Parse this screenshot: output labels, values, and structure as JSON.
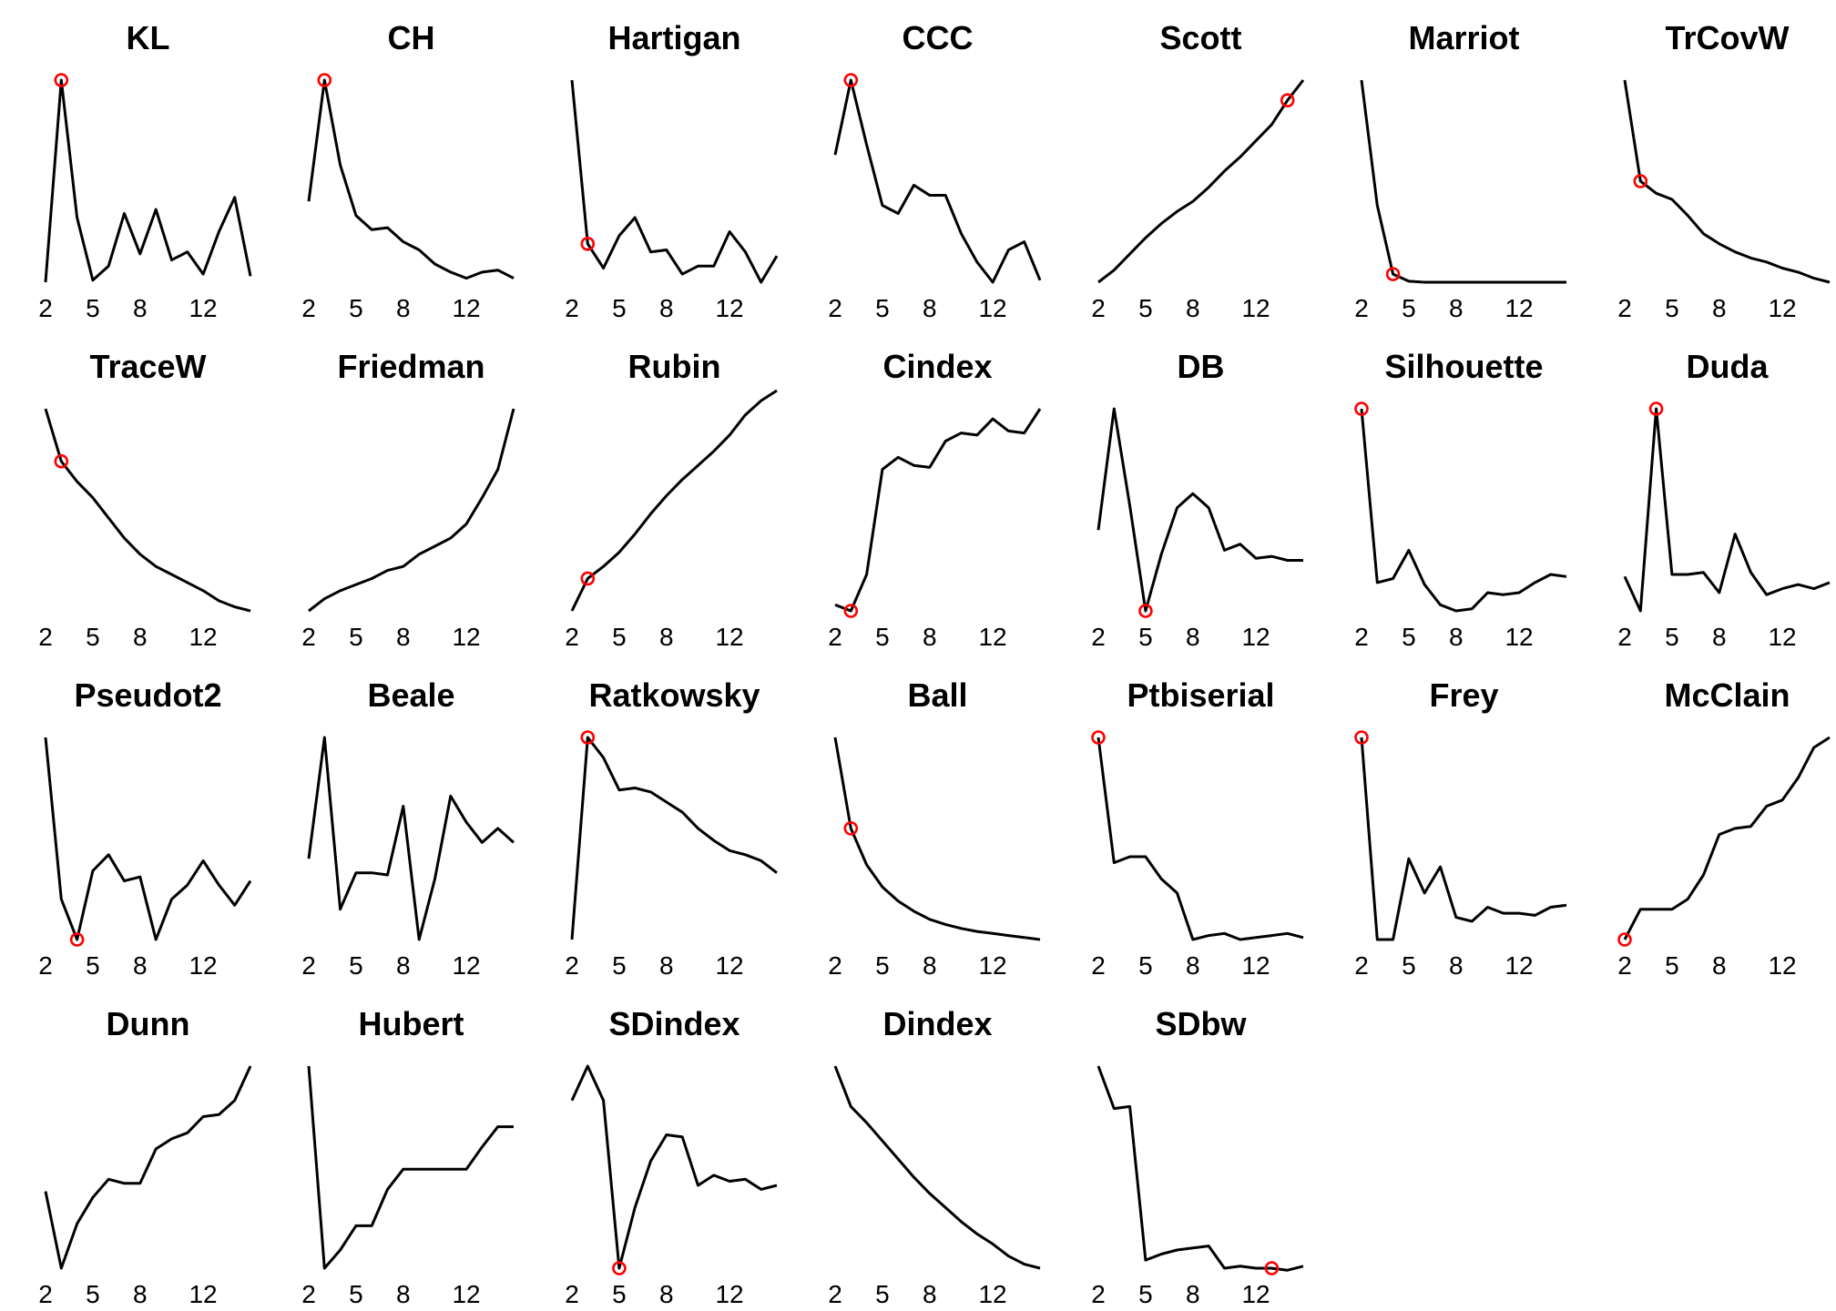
{
  "chart_data": [
    {
      "type": "line",
      "title": "KL",
      "x": [
        2,
        3,
        4,
        5,
        6,
        7,
        8,
        9,
        10,
        11,
        12,
        13,
        14,
        15
      ],
      "values": [
        0,
        1.0,
        0.32,
        0.01,
        0.08,
        0.34,
        0.14,
        0.36,
        0.11,
        0.15,
        0.04,
        0.25,
        0.42,
        0.03
      ],
      "highlight_x": 3,
      "xticks": [
        2,
        5,
        8,
        12
      ]
    },
    {
      "type": "line",
      "title": "CH",
      "x": [
        2,
        3,
        4,
        5,
        6,
        7,
        8,
        9,
        10,
        11,
        12,
        13,
        14,
        15
      ],
      "values": [
        0.4,
        1.0,
        0.58,
        0.33,
        0.26,
        0.27,
        0.2,
        0.16,
        0.09,
        0.05,
        0.02,
        0.05,
        0.06,
        0.02
      ],
      "highlight_x": 3,
      "xticks": [
        2,
        5,
        8,
        12
      ]
    },
    {
      "type": "line",
      "title": "Hartigan",
      "x": [
        2,
        3,
        4,
        5,
        6,
        7,
        8,
        9,
        10,
        11,
        12,
        13,
        14,
        15
      ],
      "values": [
        1.0,
        0.19,
        0.07,
        0.23,
        0.32,
        0.15,
        0.16,
        0.04,
        0.08,
        0.08,
        0.25,
        0.15,
        0.0,
        0.13
      ],
      "highlight_x": 3,
      "xticks": [
        2,
        5,
        8,
        12
      ]
    },
    {
      "type": "line",
      "title": "CCC",
      "x": [
        2,
        3,
        4,
        5,
        6,
        7,
        8,
        9,
        10,
        11,
        12,
        13,
        14,
        15
      ],
      "values": [
        0.63,
        1.0,
        0.68,
        0.38,
        0.34,
        0.48,
        0.43,
        0.43,
        0.24,
        0.1,
        0.0,
        0.16,
        0.2,
        0.01
      ],
      "highlight_x": 3,
      "xticks": [
        2,
        5,
        8,
        12
      ]
    },
    {
      "type": "line",
      "title": "Scott",
      "x": [
        2,
        3,
        4,
        5,
        6,
        7,
        8,
        9,
        10,
        11,
        12,
        13,
        14,
        15
      ],
      "values": [
        0,
        0.06,
        0.14,
        0.22,
        0.29,
        0.35,
        0.4,
        0.47,
        0.55,
        0.62,
        0.7,
        0.78,
        0.9,
        1.0
      ],
      "highlight_x": 14,
      "xticks": [
        2,
        5,
        8,
        12
      ]
    },
    {
      "type": "line",
      "title": "Marriot",
      "x": [
        2,
        3,
        4,
        5,
        6,
        7,
        8,
        9,
        10,
        11,
        12,
        13,
        14,
        15
      ],
      "values": [
        1.0,
        0.38,
        0.04,
        0.005,
        0,
        0,
        0,
        0,
        0,
        0,
        0,
        0,
        0,
        0
      ],
      "highlight_x": 4,
      "xticks": [
        2,
        5,
        8,
        12
      ]
    },
    {
      "type": "line",
      "title": "TrCovW",
      "x": [
        2,
        3,
        4,
        5,
        6,
        7,
        8,
        9,
        10,
        11,
        12,
        13,
        14,
        15
      ],
      "values": [
        1.0,
        0.5,
        0.44,
        0.41,
        0.33,
        0.24,
        0.19,
        0.15,
        0.12,
        0.1,
        0.07,
        0.05,
        0.02,
        0.0
      ],
      "highlight_x": 3,
      "xticks": [
        2,
        5,
        8,
        12
      ]
    },
    {
      "type": "line",
      "title": "TraceW",
      "x": [
        2,
        3,
        4,
        5,
        6,
        7,
        8,
        9,
        10,
        11,
        12,
        13,
        14,
        15
      ],
      "values": [
        1.0,
        0.74,
        0.64,
        0.56,
        0.46,
        0.36,
        0.28,
        0.22,
        0.18,
        0.14,
        0.1,
        0.05,
        0.02,
        0.0
      ],
      "highlight_x": 3,
      "xticks": [
        2,
        5,
        8,
        12
      ]
    },
    {
      "type": "line",
      "title": "Friedman",
      "x": [
        2,
        3,
        4,
        5,
        6,
        7,
        8,
        9,
        10,
        11,
        12,
        13,
        14,
        15
      ],
      "values": [
        0,
        0.06,
        0.1,
        0.13,
        0.16,
        0.2,
        0.22,
        0.28,
        0.32,
        0.36,
        0.43,
        0.56,
        0.7,
        1.0
      ],
      "xticks": [
        2,
        5,
        8,
        12
      ]
    },
    {
      "type": "line",
      "title": "Rubin",
      "x": [
        2,
        3,
        4,
        5,
        6,
        7,
        8,
        9,
        10,
        11,
        12,
        13,
        14,
        15
      ],
      "values": [
        0,
        0.16,
        0.22,
        0.29,
        0.38,
        0.48,
        0.57,
        0.65,
        0.72,
        0.79,
        0.87,
        0.97,
        1.04,
        1.09
      ],
      "highlight_x": 3,
      "xticks": [
        2,
        5,
        8,
        12
      ]
    },
    {
      "type": "line",
      "title": "Cindex",
      "x": [
        2,
        3,
        4,
        5,
        6,
        7,
        8,
        9,
        10,
        11,
        12,
        13,
        14,
        15
      ],
      "values": [
        0.03,
        0.0,
        0.18,
        0.7,
        0.76,
        0.72,
        0.71,
        0.84,
        0.88,
        0.87,
        0.95,
        0.89,
        0.88,
        1.0
      ],
      "highlight_x": 3,
      "xticks": [
        2,
        5,
        8,
        12
      ]
    },
    {
      "type": "line",
      "title": "DB",
      "x": [
        2,
        3,
        4,
        5,
        6,
        7,
        8,
        9,
        10,
        11,
        12,
        13,
        14,
        15
      ],
      "values": [
        0.4,
        1.0,
        0.52,
        0.0,
        0.28,
        0.51,
        0.58,
        0.51,
        0.3,
        0.33,
        0.26,
        0.27,
        0.25,
        0.25
      ],
      "highlight_x": 5,
      "xticks": [
        2,
        5,
        8,
        12
      ]
    },
    {
      "type": "line",
      "title": "Silhouette",
      "x": [
        2,
        3,
        4,
        5,
        6,
        7,
        8,
        9,
        10,
        11,
        12,
        13,
        14,
        15
      ],
      "values": [
        1.0,
        0.14,
        0.16,
        0.3,
        0.13,
        0.03,
        0.0,
        0.01,
        0.09,
        0.08,
        0.09,
        0.14,
        0.18,
        0.17
      ],
      "highlight_x": 2,
      "xticks": [
        2,
        5,
        8,
        12
      ]
    },
    {
      "type": "line",
      "title": "Duda",
      "x": [
        2,
        3,
        4,
        5,
        6,
        7,
        8,
        9,
        10,
        11,
        12,
        13,
        14,
        15
      ],
      "values": [
        0.17,
        0.0,
        1.0,
        0.18,
        0.18,
        0.19,
        0.09,
        0.38,
        0.19,
        0.08,
        0.11,
        0.13,
        0.11,
        0.14
      ],
      "highlight_x": 4,
      "xticks": [
        2,
        5,
        8,
        12
      ]
    },
    {
      "type": "line",
      "title": "Pseudot2",
      "x": [
        2,
        3,
        4,
        5,
        6,
        7,
        8,
        9,
        10,
        11,
        12,
        13,
        14,
        15
      ],
      "values": [
        1.0,
        0.2,
        0.0,
        0.34,
        0.42,
        0.29,
        0.31,
        0.0,
        0.2,
        0.27,
        0.39,
        0.27,
        0.17,
        0.29
      ],
      "highlight_x": 4,
      "xticks": [
        2,
        5,
        8,
        12
      ]
    },
    {
      "type": "line",
      "title": "Beale",
      "x": [
        2,
        3,
        4,
        5,
        6,
        7,
        8,
        9,
        10,
        11,
        12,
        13,
        14,
        15
      ],
      "values": [
        0.4,
        1.0,
        0.15,
        0.33,
        0.33,
        0.32,
        0.66,
        0.0,
        0.3,
        0.71,
        0.58,
        0.48,
        0.55,
        0.48
      ],
      "xticks": [
        2,
        5,
        8,
        12
      ]
    },
    {
      "type": "line",
      "title": "Ratkowsky",
      "x": [
        2,
        3,
        4,
        5,
        6,
        7,
        8,
        9,
        10,
        11,
        12,
        13,
        14,
        15
      ],
      "values": [
        0.0,
        1.0,
        0.9,
        0.74,
        0.75,
        0.73,
        0.68,
        0.63,
        0.55,
        0.49,
        0.44,
        0.42,
        0.39,
        0.33
      ],
      "highlight_x": 3,
      "xticks": [
        2,
        5,
        8,
        12
      ]
    },
    {
      "type": "line",
      "title": "Ball",
      "x": [
        2,
        3,
        4,
        5,
        6,
        7,
        8,
        9,
        10,
        11,
        12,
        13,
        14,
        15
      ],
      "values": [
        1.0,
        0.55,
        0.37,
        0.26,
        0.19,
        0.14,
        0.1,
        0.075,
        0.055,
        0.04,
        0.03,
        0.02,
        0.01,
        0.0
      ],
      "highlight_x": 3,
      "xticks": [
        2,
        5,
        8,
        12
      ]
    },
    {
      "type": "line",
      "title": "Ptbiserial",
      "x": [
        2,
        3,
        4,
        5,
        6,
        7,
        8,
        9,
        10,
        11,
        12,
        13,
        14,
        15
      ],
      "values": [
        1.0,
        0.38,
        0.41,
        0.41,
        0.3,
        0.23,
        0.0,
        0.02,
        0.03,
        0.0,
        0.01,
        0.02,
        0.03,
        0.01
      ],
      "highlight_x": 2,
      "xticks": [
        2,
        5,
        8,
        12
      ]
    },
    {
      "type": "line",
      "title": "Frey",
      "x": [
        2,
        3,
        4,
        5,
        6,
        7,
        8,
        9,
        10,
        11,
        12,
        13,
        14,
        15
      ],
      "values": [
        1.0,
        0.0,
        0.0,
        0.4,
        0.23,
        0.36,
        0.11,
        0.09,
        0.16,
        0.13,
        0.13,
        0.12,
        0.16,
        0.17
      ],
      "highlight_x": 2,
      "xticks": [
        2,
        5,
        8,
        12
      ]
    },
    {
      "type": "line",
      "title": "McClain",
      "x": [
        2,
        3,
        4,
        5,
        6,
        7,
        8,
        9,
        10,
        11,
        12,
        13,
        14,
        15
      ],
      "values": [
        0.0,
        0.15,
        0.15,
        0.15,
        0.2,
        0.32,
        0.52,
        0.55,
        0.56,
        0.66,
        0.69,
        0.8,
        0.95,
        1.0
      ],
      "highlight_x": 2,
      "xticks": [
        2,
        5,
        8,
        12
      ]
    },
    {
      "type": "line",
      "title": "Dunn",
      "x": [
        2,
        3,
        4,
        5,
        6,
        7,
        8,
        9,
        10,
        11,
        12,
        13,
        14,
        15
      ],
      "values": [
        0.38,
        0.0,
        0.22,
        0.35,
        0.44,
        0.42,
        0.42,
        0.59,
        0.64,
        0.67,
        0.75,
        0.76,
        0.83,
        1.0
      ],
      "xticks": [
        2,
        5,
        8,
        12
      ]
    },
    {
      "type": "line",
      "title": "Hubert",
      "x": [
        2,
        3,
        4,
        5,
        6,
        7,
        8,
        9,
        10,
        11,
        12,
        13,
        14,
        15
      ],
      "values": [
        1.0,
        0.0,
        0.09,
        0.21,
        0.21,
        0.39,
        0.49,
        0.49,
        0.49,
        0.49,
        0.49,
        0.6,
        0.7,
        0.7
      ],
      "xticks": [
        2,
        5,
        8,
        12
      ]
    },
    {
      "type": "line",
      "title": "SDindex",
      "x": [
        2,
        3,
        4,
        5,
        6,
        7,
        8,
        9,
        10,
        11,
        12,
        13,
        14,
        15
      ],
      "values": [
        0.83,
        1.0,
        0.83,
        0.0,
        0.3,
        0.53,
        0.66,
        0.65,
        0.41,
        0.46,
        0.43,
        0.44,
        0.39,
        0.41
      ],
      "highlight_x": 5,
      "xticks": [
        2,
        5,
        8,
        12
      ]
    },
    {
      "type": "line",
      "title": "Dindex",
      "x": [
        2,
        3,
        4,
        5,
        6,
        7,
        8,
        9,
        10,
        11,
        12,
        13,
        14,
        15
      ],
      "values": [
        1.0,
        0.8,
        0.72,
        0.63,
        0.54,
        0.45,
        0.37,
        0.3,
        0.23,
        0.17,
        0.12,
        0.06,
        0.02,
        0.0
      ],
      "xticks": [
        2,
        5,
        8,
        12
      ]
    },
    {
      "type": "line",
      "title": "SDbw",
      "x": [
        2,
        3,
        4,
        5,
        6,
        7,
        8,
        9,
        10,
        11,
        12,
        13,
        14,
        15
      ],
      "values": [
        1.0,
        0.79,
        0.8,
        0.04,
        0.07,
        0.09,
        0.1,
        0.11,
        0.0,
        0.01,
        0.0,
        0.0,
        -0.01,
        0.01
      ],
      "highlight_x": 13,
      "xticks": [
        2,
        5,
        8,
        12
      ]
    }
  ]
}
